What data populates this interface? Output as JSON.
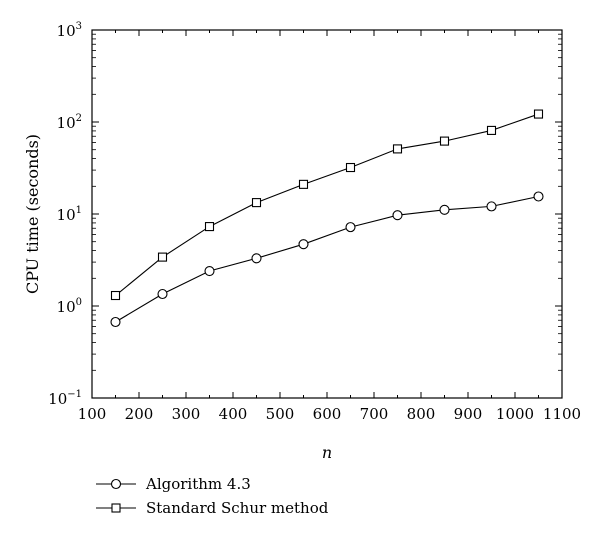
{
  "chart_data": {
    "type": "line",
    "xlabel": "n",
    "ylabel": "CPU time (seconds)",
    "xlim": [
      100,
      1100
    ],
    "ylim": [
      0.1,
      1000
    ],
    "yscale": "log",
    "grid": false,
    "legend_placement": "bottom-left, below plot",
    "x_ticks": [
      "100",
      "200",
      "300",
      "400",
      "500",
      "600",
      "700",
      "800",
      "900",
      "1000",
      "1100"
    ],
    "y_ticks": [
      {
        "base": "10",
        "exp": "3"
      },
      {
        "base": "10",
        "exp": "2"
      },
      {
        "base": "10",
        "exp": "1"
      },
      {
        "base": "10",
        "exp": "0"
      },
      {
        "base": "10",
        "exp": "−1"
      }
    ],
    "x": [
      150,
      250,
      350,
      450,
      550,
      650,
      750,
      850,
      950,
      1050
    ],
    "series": [
      {
        "name": "Algorithm 4.3",
        "marker": "circle",
        "values": [
          0.67,
          1.35,
          2.4,
          3.3,
          4.7,
          7.2,
          9.7,
          11.1,
          12.1,
          15.5
        ]
      },
      {
        "name": "Standard Schur method",
        "marker": "square",
        "values": [
          1.3,
          3.4,
          7.3,
          13.3,
          21,
          32,
          51,
          62,
          81,
          122
        ]
      }
    ],
    "line_color": "#000000"
  }
}
